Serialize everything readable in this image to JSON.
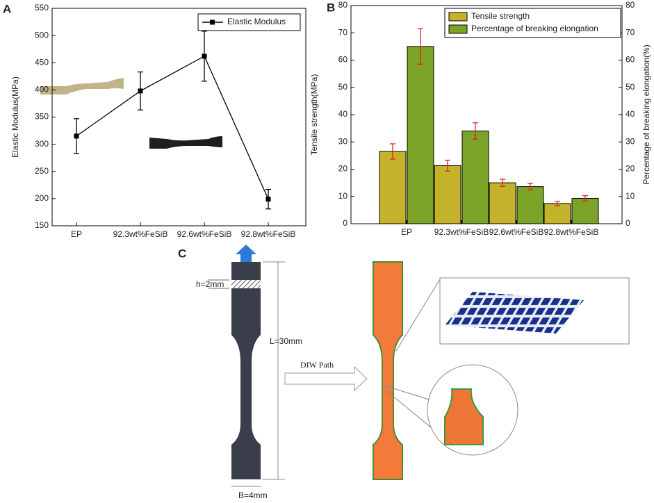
{
  "chart_data": [
    {
      "type": "line",
      "panel": "A",
      "ylabel": "Elastic Modulus(MPa)",
      "categories": [
        "EP",
        "92.3wt%FeSiB",
        "92.6wt%FeSiB",
        "92.8wt%FeSiB"
      ],
      "series": [
        {
          "name": "Elastic Modulus",
          "color": "#000000",
          "values": [
            315,
            398,
            462,
            199
          ],
          "errors": [
            32,
            35,
            46,
            18
          ]
        }
      ],
      "ylim": [
        150,
        550
      ],
      "yticks": [
        150,
        200,
        250,
        300,
        350,
        400,
        450,
        500,
        550
      ],
      "legend": "upper right"
    },
    {
      "type": "bar",
      "panel": "B",
      "ylabel": "Tensile strength(MPa)",
      "y2label": "Percentage of breaking elongation(%)",
      "categories": [
        "EP",
        "92.3wt%FeSiB",
        "92.6wt%FeSiB",
        "92.8wt%FeSiB"
      ],
      "series": [
        {
          "name": "Tensile strength",
          "color": "#c4b22a",
          "values": [
            26.5,
            21.3,
            15,
            7.4
          ],
          "errors": [
            2.8,
            2,
            1.3,
            0.8
          ]
        },
        {
          "name": "Percentage of breaking elongation",
          "color": "#7ba327",
          "axis": "y2",
          "values": [
            65,
            34,
            13.6,
            9.3
          ],
          "errors": [
            6.5,
            3,
            1.2,
            1
          ]
        }
      ],
      "ylim": [
        0,
        80
      ],
      "yticks": [
        0,
        10,
        20,
        30,
        40,
        50,
        60,
        70,
        80
      ],
      "y2lim": [
        0,
        80
      ],
      "y2ticks": [
        0,
        10,
        20,
        30,
        40,
        50,
        60,
        70,
        80
      ],
      "error_color": "#e02020",
      "legend": "upper right"
    }
  ],
  "diagram": {
    "panel": "C",
    "h": "h=2mm",
    "L": "L=30mm",
    "B": "B=4mm",
    "arrow": "DIW  Path"
  }
}
